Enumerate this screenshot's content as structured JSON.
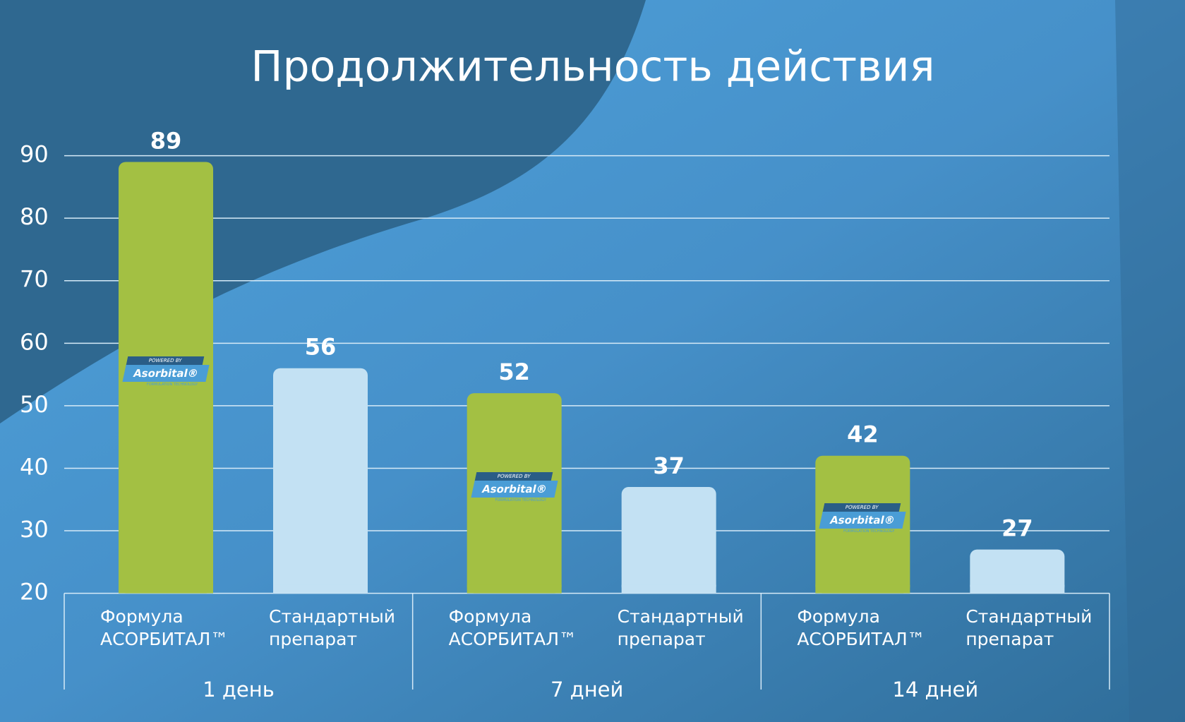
{
  "chart_data": {
    "type": "bar",
    "title": "Продолжительность действия",
    "categories": [
      "1 день",
      "7 дней",
      "14 дней"
    ],
    "series": [
      {
        "name": "Формула АСОРБИТАЛ™",
        "color": "#a3c043",
        "values": [
          89,
          52,
          42
        ]
      },
      {
        "name": "Стандартный препарат",
        "color": "#c3e1f3",
        "values": [
          56,
          37,
          27
        ]
      }
    ],
    "badge": {
      "top": "POWERED BY",
      "name": "Asorbital®",
      "bottom": "FORMULATION TECHNOLOGY"
    },
    "ylim": [
      20,
      90
    ],
    "yticks": [
      20,
      30,
      40,
      50,
      60,
      70,
      80,
      90
    ],
    "grid": true
  }
}
